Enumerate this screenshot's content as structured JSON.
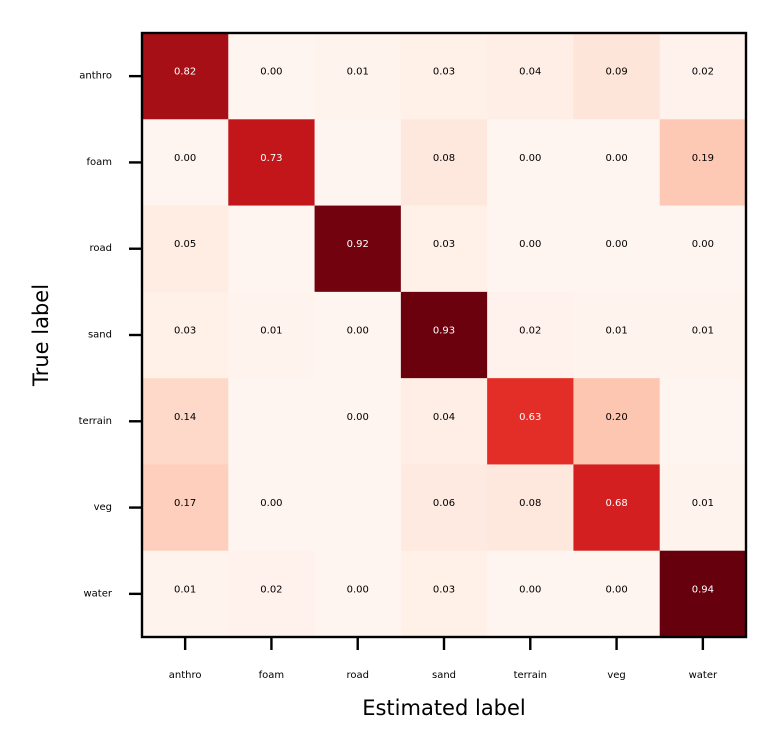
{
  "chart_data": {
    "type": "heatmap",
    "title": "",
    "xlabel": "Estimated label",
    "ylabel": "True label",
    "x_categories": [
      "anthro",
      "foam",
      "road",
      "sand",
      "terrain",
      "veg",
      "water"
    ],
    "y_categories": [
      "anthro",
      "foam",
      "road",
      "sand",
      "terrain",
      "veg",
      "water"
    ],
    "values": [
      [
        0.82,
        0.0,
        0.01,
        0.03,
        0.04,
        0.09,
        0.02
      ],
      [
        0.0,
        0.73,
        null,
        0.08,
        0.0,
        0.0,
        0.19
      ],
      [
        0.05,
        null,
        0.92,
        0.03,
        0.0,
        0.0,
        0.0
      ],
      [
        0.03,
        0.01,
        0.0,
        0.93,
        0.02,
        0.01,
        0.01
      ],
      [
        0.14,
        null,
        0.0,
        0.04,
        0.63,
        0.2,
        null
      ],
      [
        0.17,
        0.0,
        null,
        0.06,
        0.08,
        0.68,
        0.01
      ],
      [
        0.01,
        0.02,
        0.0,
        0.03,
        0.0,
        0.0,
        0.94
      ]
    ],
    "colormap": "Reds",
    "value_range": [
      0,
      0.94
    ],
    "grid": false,
    "legend": "none"
  }
}
